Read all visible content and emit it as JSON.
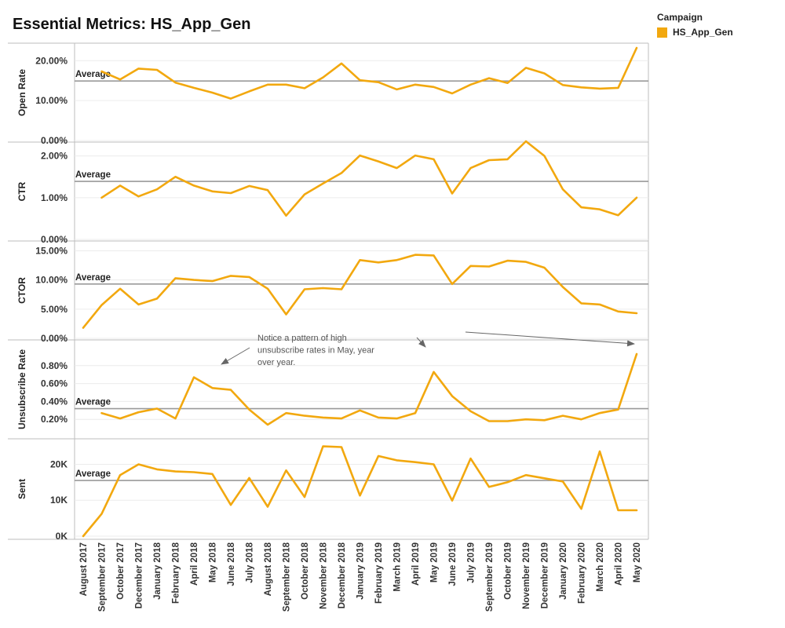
{
  "title": "Essential Metrics: HS_App_Gen",
  "legend": {
    "title": "Campaign",
    "item": "HS_App_Gen"
  },
  "colors": {
    "series": "#F2A80F",
    "average": "#9a9a9a",
    "grid": "#ececec",
    "axis": "#bdbdbd",
    "arrow": "#666666"
  },
  "average_label": "Average",
  "annotation": [
    "Notice a pattern of high",
    "unsubscribe rates in May, year",
    "over year."
  ],
  "chart_data": {
    "type": "line",
    "categories": [
      "August 2017",
      "September 2017",
      "October 2017",
      "December 2017",
      "January 2018",
      "February 2018",
      "April 2018",
      "May 2018",
      "June 2018",
      "July 2018",
      "August 2018",
      "September 2018",
      "October 2018",
      "November 2018",
      "December 2018",
      "January 2019",
      "February 2019",
      "March 2019",
      "April 2019",
      "May 2019",
      "June 2019",
      "July 2019",
      "September 2019",
      "October 2019",
      "November 2019",
      "December 2019",
      "January 2020",
      "February 2020",
      "March 2020",
      "April 2020",
      "May 2020"
    ],
    "legend": {
      "title": "Campaign",
      "entries": [
        "HS_App_Gen"
      ],
      "position": "top-right"
    },
    "panels": [
      {
        "name": "Open Rate",
        "ylabel": "Open Rate",
        "ylim": [
          0,
          23
        ],
        "ticks": [
          0,
          10,
          20
        ],
        "tick_labels": [
          "0.00%",
          "10.00%",
          "20.00%"
        ],
        "average": 14.9,
        "values": [
          null,
          17.3,
          15.3,
          18.0,
          17.7,
          14.5,
          13.2,
          12.0,
          10.5,
          12.3,
          14.0,
          14.0,
          13.1,
          15.8,
          19.3,
          15.1,
          14.6,
          12.8,
          14.0,
          13.4,
          11.8,
          14.0,
          15.6,
          14.4,
          18.2,
          16.8,
          13.9,
          13.3,
          13.0,
          13.2,
          23.2
        ]
      },
      {
        "name": "CTR",
        "ylabel": "CTR",
        "ylim": [
          0,
          2.2
        ],
        "ticks": [
          0,
          1,
          2
        ],
        "tick_labels": [
          "0.00%",
          "1.00%",
          "2.00%"
        ],
        "average": 1.39,
        "values": [
          null,
          1.0,
          1.29,
          1.03,
          1.2,
          1.5,
          1.29,
          1.15,
          1.11,
          1.28,
          1.18,
          0.57,
          1.08,
          1.34,
          1.59,
          2.01,
          1.87,
          1.71,
          2.01,
          1.92,
          1.1,
          1.71,
          1.9,
          1.92,
          2.35,
          2.0,
          1.2,
          0.77,
          0.72,
          0.58,
          1.0
        ]
      },
      {
        "name": "CTOR",
        "ylabel": "CTOR",
        "ylim": [
          0,
          16
        ],
        "ticks": [
          0,
          5,
          10,
          15
        ],
        "tick_labels": [
          "0.00%",
          "5.00%",
          "10.00%",
          "15.00%"
        ],
        "average": 9.3,
        "values": [
          1.8,
          5.7,
          8.5,
          5.8,
          6.8,
          10.3,
          10.0,
          9.8,
          10.7,
          10.5,
          8.5,
          4.1,
          8.4,
          8.6,
          8.4,
          13.4,
          13.0,
          13.4,
          14.3,
          14.2,
          9.3,
          12.4,
          12.3,
          13.3,
          13.1,
          12.1,
          8.8,
          6.0,
          5.8,
          4.6,
          4.3
        ]
      },
      {
        "name": "Unsubscribe Rate",
        "ylabel": "Unsubscribe Rate",
        "ylim": [
          0,
          1.0
        ],
        "ticks": [
          0.2,
          0.4,
          0.6,
          0.8
        ],
        "tick_labels": [
          "0.20%",
          "0.40%",
          "0.60%",
          "0.80%"
        ],
        "average": 0.32,
        "values": [
          null,
          0.27,
          0.21,
          0.28,
          0.32,
          0.21,
          0.67,
          0.55,
          0.53,
          0.31,
          0.14,
          0.27,
          0.24,
          0.22,
          0.21,
          0.3,
          0.22,
          0.21,
          0.27,
          0.73,
          0.46,
          0.29,
          0.18,
          0.18,
          0.2,
          0.19,
          0.24,
          0.2,
          0.27,
          0.31,
          0.93
        ]
      },
      {
        "name": "Sent",
        "ylabel": "Sent",
        "ylim": [
          0,
          26000
        ],
        "ticks": [
          0,
          10000,
          20000
        ],
        "tick_labels": [
          "0K",
          "10K",
          "20K"
        ],
        "average": 15500,
        "values": [
          0,
          6200,
          17000,
          20000,
          18600,
          18000,
          17800,
          17300,
          8700,
          16200,
          8200,
          18300,
          10900,
          25000,
          24800,
          11300,
          22300,
          21100,
          20600,
          20000,
          9900,
          21600,
          13700,
          15000,
          17000,
          16100,
          15200,
          7600,
          23600,
          7200,
          7200
        ]
      }
    ]
  }
}
